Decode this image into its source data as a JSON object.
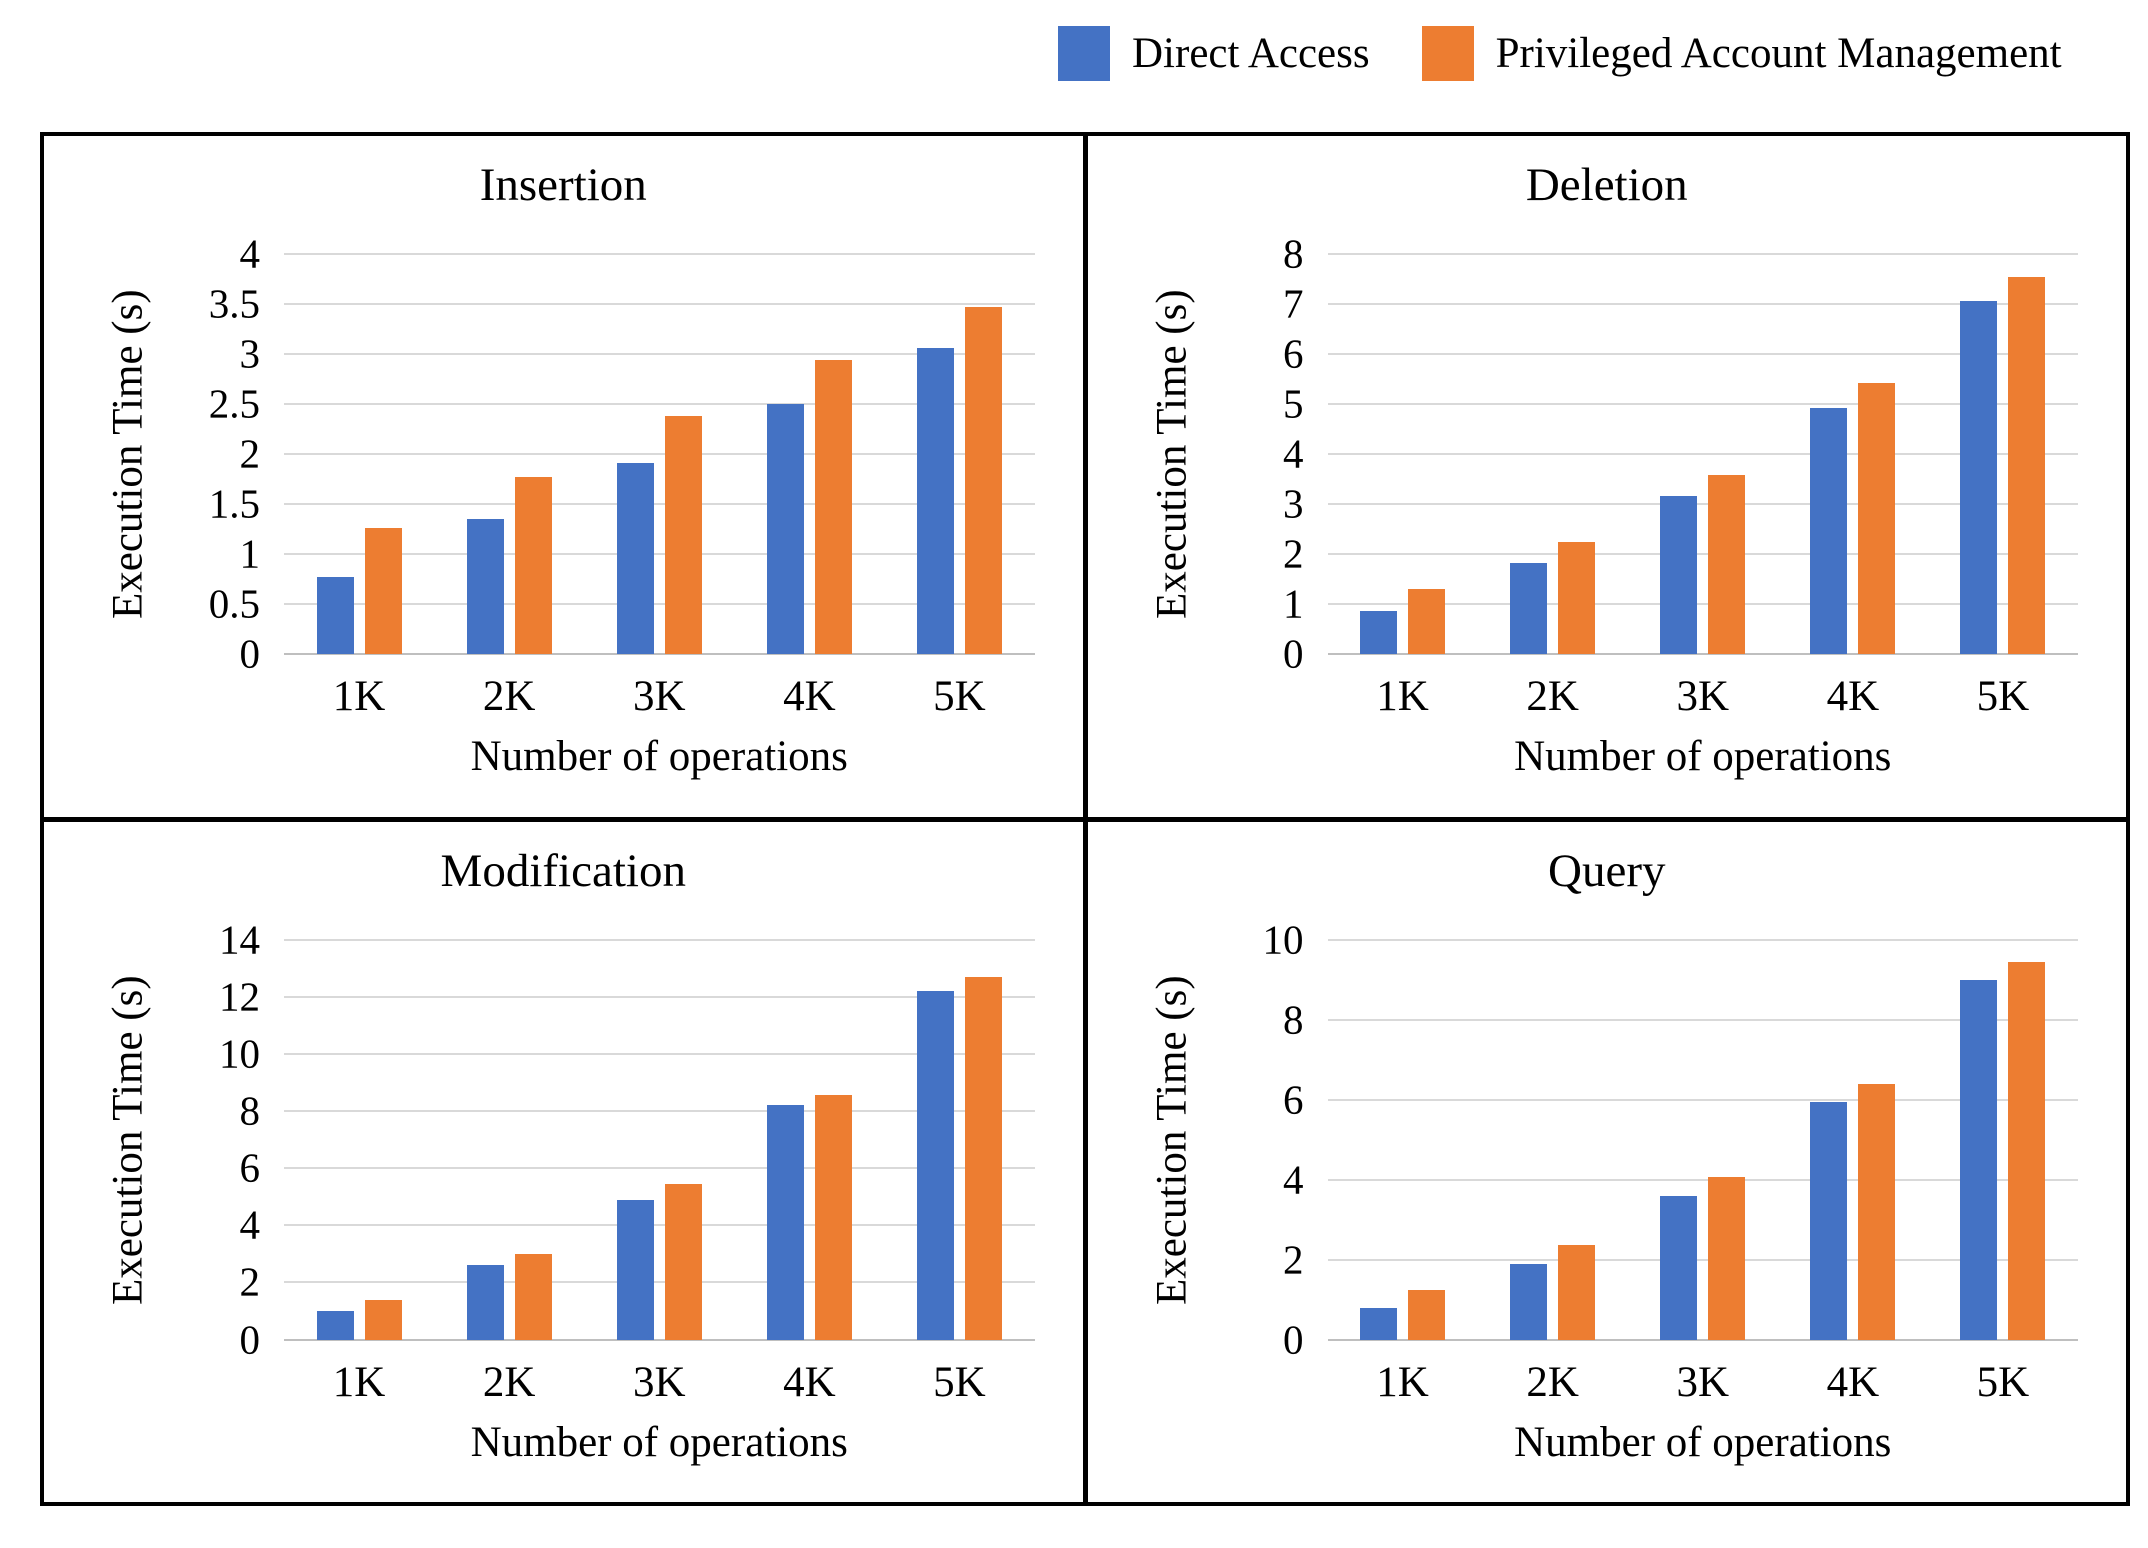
{
  "legend": {
    "items": [
      {
        "label": "Direct Access",
        "color": "#4472C4"
      },
      {
        "label": "Privileged Account Management",
        "color": "#ED7D31"
      }
    ]
  },
  "colors": {
    "direct_access": "#4472C4",
    "privileged_account_management": "#ED7D31",
    "gridline": "#d9d9d9",
    "axis_line": "#bfbfbf",
    "panel_border": "#000000"
  },
  "chart_data": [
    {
      "type": "bar",
      "title": "Insertion",
      "xlabel": "Number of operations",
      "ylabel": "Execution Time (s)",
      "categories": [
        "1K",
        "2K",
        "3K",
        "4K",
        "5K"
      ],
      "ylim": [
        0,
        4
      ],
      "yticks": [
        0,
        0.5,
        1,
        1.5,
        2,
        2.5,
        3,
        3.5,
        4
      ],
      "grid": true,
      "legend_position": "top",
      "series": [
        {
          "name": "Direct Access",
          "color": "#4472C4",
          "values": [
            0.77,
            1.35,
            1.91,
            2.5,
            3.06
          ]
        },
        {
          "name": "Privileged Account Management",
          "color": "#ED7D31",
          "values": [
            1.26,
            1.77,
            2.38,
            2.94,
            3.47
          ]
        }
      ]
    },
    {
      "type": "bar",
      "title": "Deletion",
      "xlabel": "Number of operations",
      "ylabel": "Execution Time (s)",
      "categories": [
        "1K",
        "2K",
        "3K",
        "4K",
        "5K"
      ],
      "ylim": [
        0,
        8
      ],
      "yticks": [
        0,
        1,
        2,
        3,
        4,
        5,
        6,
        7,
        8
      ],
      "grid": true,
      "legend_position": "top",
      "series": [
        {
          "name": "Direct Access",
          "color": "#4472C4",
          "values": [
            0.87,
            1.82,
            3.17,
            4.93,
            7.07
          ]
        },
        {
          "name": "Privileged Account Management",
          "color": "#ED7D31",
          "values": [
            1.3,
            2.25,
            3.58,
            5.43,
            7.55
          ]
        }
      ]
    },
    {
      "type": "bar",
      "title": "Modification",
      "xlabel": "Number of operations",
      "ylabel": "Execution Time (s)",
      "categories": [
        "1K",
        "2K",
        "3K",
        "4K",
        "5K"
      ],
      "ylim": [
        0,
        14
      ],
      "yticks": [
        0,
        2,
        4,
        6,
        8,
        10,
        12,
        14
      ],
      "grid": true,
      "legend_position": "top",
      "series": [
        {
          "name": "Direct Access",
          "color": "#4472C4",
          "values": [
            1.0,
            2.6,
            4.9,
            8.2,
            12.2
          ]
        },
        {
          "name": "Privileged Account Management",
          "color": "#ED7D31",
          "values": [
            1.4,
            3.0,
            5.45,
            8.55,
            12.7
          ]
        }
      ]
    },
    {
      "type": "bar",
      "title": "Query",
      "xlabel": "Number of operations",
      "ylabel": "Execution Time (s)",
      "categories": [
        "1K",
        "2K",
        "3K",
        "4K",
        "5K"
      ],
      "ylim": [
        0,
        10
      ],
      "yticks": [
        0,
        2,
        4,
        6,
        8,
        10
      ],
      "grid": true,
      "legend_position": "top",
      "series": [
        {
          "name": "Direct Access",
          "color": "#4472C4",
          "values": [
            0.8,
            1.9,
            3.6,
            5.93,
            9.0
          ]
        },
        {
          "name": "Privileged Account Management",
          "color": "#ED7D31",
          "values": [
            1.25,
            2.37,
            4.07,
            6.4,
            9.43
          ]
        }
      ]
    }
  ]
}
